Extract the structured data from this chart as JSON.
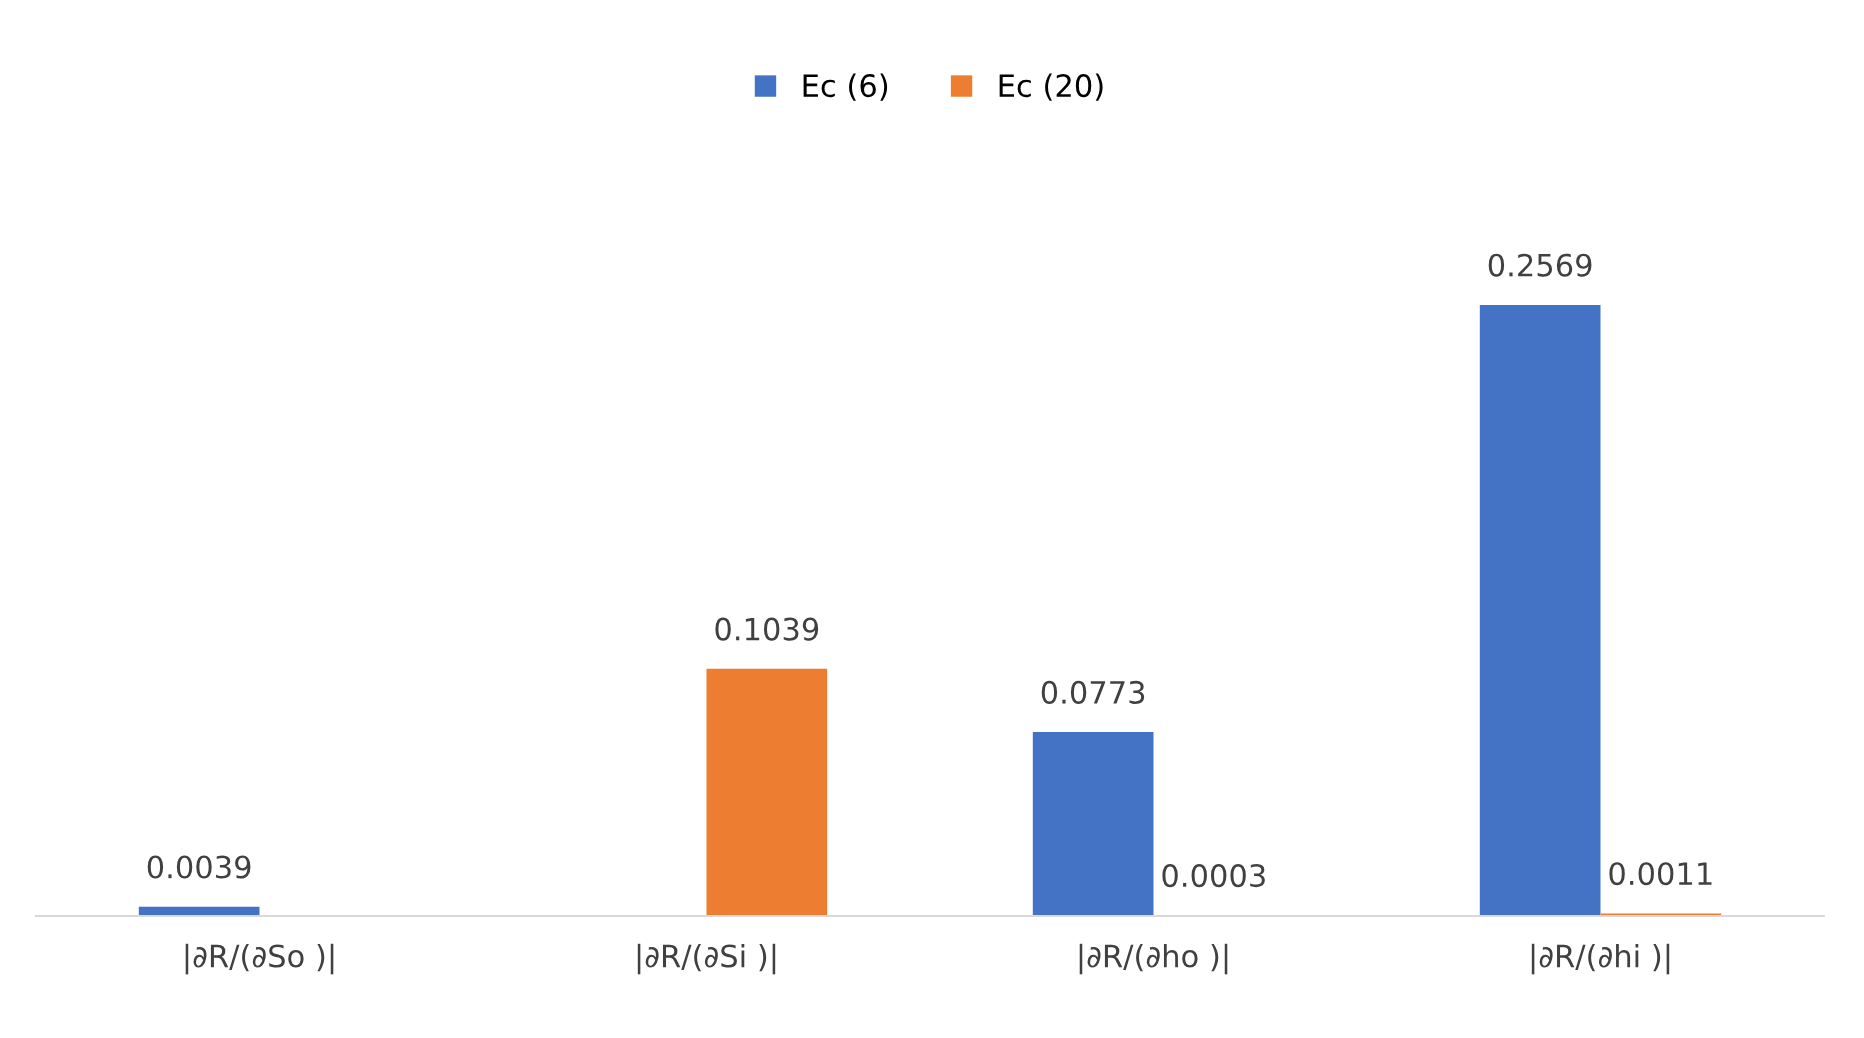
{
  "chart_data": {
    "type": "bar",
    "categories": [
      "|∂R/(∂So )|",
      "|∂R/(∂Si )|",
      "|∂R/(∂ho )|",
      "|∂R/(∂hi )|"
    ],
    "series": [
      {
        "name": "Ec (6)",
        "color": "#4472c4",
        "values": [
          0.0039,
          null,
          0.0773,
          0.2569
        ]
      },
      {
        "name": "Ec (20)",
        "color": "#ed7d31",
        "values": [
          null,
          0.1039,
          0.0003,
          0.0011
        ]
      }
    ],
    "data_labels": true,
    "legend": "top"
  }
}
